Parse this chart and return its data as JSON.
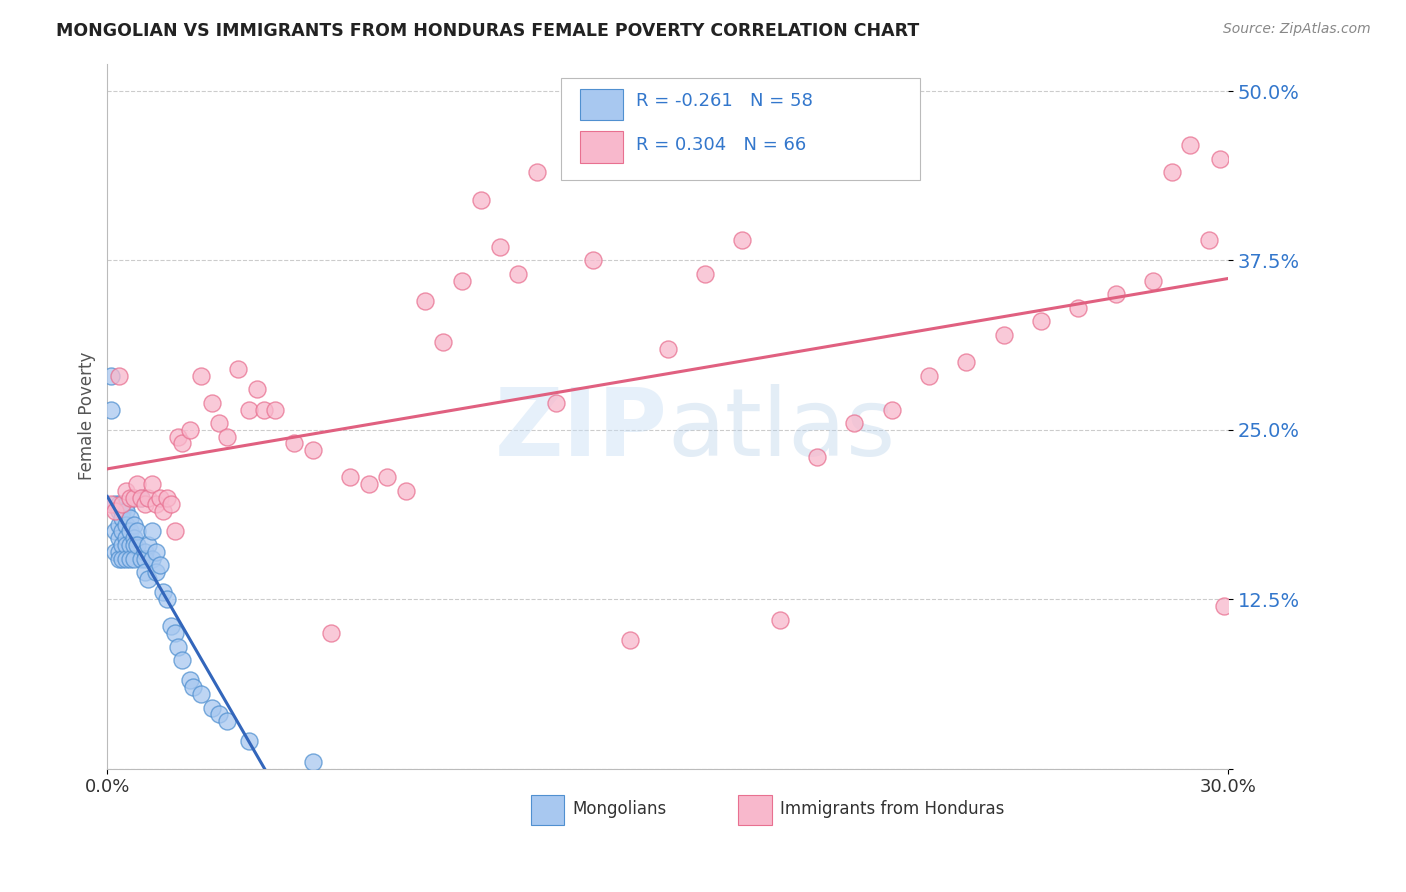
{
  "title": "MONGOLIAN VS IMMIGRANTS FROM HONDURAS FEMALE POVERTY CORRELATION CHART",
  "source": "Source: ZipAtlas.com",
  "ylabel": "Female Poverty",
  "yticks": [
    0.0,
    0.125,
    0.25,
    0.375,
    0.5
  ],
  "ytick_labels": [
    "",
    "12.5%",
    "25.0%",
    "37.5%",
    "50.0%"
  ],
  "xlim": [
    0.0,
    0.3
  ],
  "ylim": [
    0.0,
    0.52
  ],
  "xtick_left": "0.0%",
  "xtick_right": "30.0%",
  "legend_label1": "R = -0.261   N = 58",
  "legend_label2": "R = 0.304   N = 66",
  "legend_sublabel1": "Mongolians",
  "legend_sublabel2": "Immigrants from Honduras",
  "color_mongolian": "#a8c8f0",
  "color_honduras": "#f8b8cc",
  "color_mongolian_edge": "#5090d0",
  "color_honduras_edge": "#e87090",
  "color_mongolian_line": "#3366bb",
  "color_honduras_line": "#e06080",
  "watermark": "ZIPAtlas",
  "mongolian_x": [
    0.001,
    0.001,
    0.002,
    0.002,
    0.002,
    0.003,
    0.003,
    0.003,
    0.003,
    0.003,
    0.003,
    0.004,
    0.004,
    0.004,
    0.004,
    0.004,
    0.005,
    0.005,
    0.005,
    0.005,
    0.005,
    0.005,
    0.006,
    0.006,
    0.006,
    0.006,
    0.007,
    0.007,
    0.007,
    0.007,
    0.008,
    0.008,
    0.009,
    0.009,
    0.01,
    0.01,
    0.01,
    0.011,
    0.011,
    0.012,
    0.012,
    0.013,
    0.013,
    0.014,
    0.015,
    0.016,
    0.017,
    0.018,
    0.019,
    0.02,
    0.022,
    0.023,
    0.025,
    0.028,
    0.03,
    0.032,
    0.038,
    0.055
  ],
  "mongolian_y": [
    0.29,
    0.265,
    0.195,
    0.175,
    0.16,
    0.195,
    0.19,
    0.18,
    0.17,
    0.16,
    0.155,
    0.19,
    0.185,
    0.175,
    0.165,
    0.155,
    0.195,
    0.19,
    0.18,
    0.17,
    0.165,
    0.155,
    0.185,
    0.175,
    0.165,
    0.155,
    0.18,
    0.17,
    0.165,
    0.155,
    0.175,
    0.165,
    0.2,
    0.155,
    0.16,
    0.155,
    0.145,
    0.165,
    0.14,
    0.175,
    0.155,
    0.16,
    0.145,
    0.15,
    0.13,
    0.125,
    0.105,
    0.1,
    0.09,
    0.08,
    0.065,
    0.06,
    0.055,
    0.045,
    0.04,
    0.035,
    0.02,
    0.005
  ],
  "honduras_x": [
    0.001,
    0.002,
    0.003,
    0.004,
    0.005,
    0.006,
    0.007,
    0.008,
    0.009,
    0.01,
    0.011,
    0.012,
    0.013,
    0.014,
    0.015,
    0.016,
    0.017,
    0.018,
    0.019,
    0.02,
    0.022,
    0.025,
    0.028,
    0.03,
    0.032,
    0.035,
    0.038,
    0.04,
    0.042,
    0.045,
    0.05,
    0.055,
    0.06,
    0.065,
    0.07,
    0.075,
    0.08,
    0.085,
    0.09,
    0.095,
    0.1,
    0.105,
    0.11,
    0.115,
    0.12,
    0.13,
    0.14,
    0.15,
    0.16,
    0.17,
    0.18,
    0.19,
    0.2,
    0.21,
    0.22,
    0.23,
    0.24,
    0.25,
    0.26,
    0.27,
    0.28,
    0.285,
    0.29,
    0.295,
    0.298,
    0.299
  ],
  "honduras_y": [
    0.195,
    0.19,
    0.29,
    0.195,
    0.205,
    0.2,
    0.2,
    0.21,
    0.2,
    0.195,
    0.2,
    0.21,
    0.195,
    0.2,
    0.19,
    0.2,
    0.195,
    0.175,
    0.245,
    0.24,
    0.25,
    0.29,
    0.27,
    0.255,
    0.245,
    0.295,
    0.265,
    0.28,
    0.265,
    0.265,
    0.24,
    0.235,
    0.1,
    0.215,
    0.21,
    0.215,
    0.205,
    0.345,
    0.315,
    0.36,
    0.42,
    0.385,
    0.365,
    0.44,
    0.27,
    0.375,
    0.095,
    0.31,
    0.365,
    0.39,
    0.11,
    0.23,
    0.255,
    0.265,
    0.29,
    0.3,
    0.32,
    0.33,
    0.34,
    0.35,
    0.36,
    0.44,
    0.46,
    0.39,
    0.45,
    0.12
  ]
}
